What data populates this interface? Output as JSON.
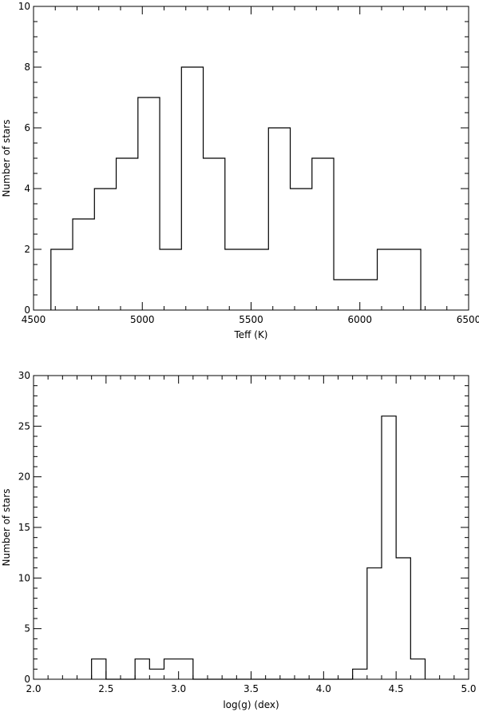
{
  "chart_data": [
    {
      "type": "histogram",
      "xlabel": "Teff (K)",
      "ylabel": "Number of stars",
      "xlim": [
        4500,
        6500
      ],
      "ylim": [
        0,
        10
      ],
      "xticks": [
        "4500",
        "5000",
        "5500",
        "6000",
        "6500"
      ],
      "yticks": [
        "0",
        "2",
        "4",
        "6",
        "8",
        "10"
      ],
      "bin_edges": [
        4580,
        4680,
        4780,
        4880,
        4980,
        5080,
        5180,
        5280,
        5380,
        5480,
        5580,
        5680,
        5780,
        5880,
        5980,
        6080,
        6180,
        6280
      ],
      "counts": [
        2,
        3,
        4,
        5,
        7,
        2,
        8,
        5,
        2,
        2,
        6,
        4,
        5,
        1,
        1,
        2,
        2
      ],
      "grid": false,
      "color": "#000000"
    },
    {
      "type": "histogram",
      "xlabel": "log(g) (dex)",
      "ylabel": "Number of stars",
      "xlim": [
        2.0,
        5.0
      ],
      "ylim": [
        0,
        30
      ],
      "xticks": [
        "2.0",
        "2.5",
        "3.0",
        "3.5",
        "4.0",
        "4.5",
        "5.0"
      ],
      "yticks": [
        "0",
        "5",
        "10",
        "15",
        "20",
        "25",
        "30"
      ],
      "bin_edges": [
        2.4,
        2.5,
        2.6,
        2.7,
        2.8,
        2.9,
        3.0,
        3.1,
        3.2,
        3.3,
        3.4,
        3.5,
        3.6,
        3.7,
        3.8,
        3.9,
        4.0,
        4.1,
        4.2,
        4.3,
        4.4,
        4.5,
        4.6,
        4.7
      ],
      "counts": [
        2,
        0,
        0,
        2,
        1,
        2,
        2,
        0,
        0,
        0,
        0,
        0,
        0,
        0,
        0,
        0,
        0,
        0,
        1,
        11,
        26,
        12,
        2
      ],
      "grid": false,
      "color": "#000000"
    }
  ]
}
